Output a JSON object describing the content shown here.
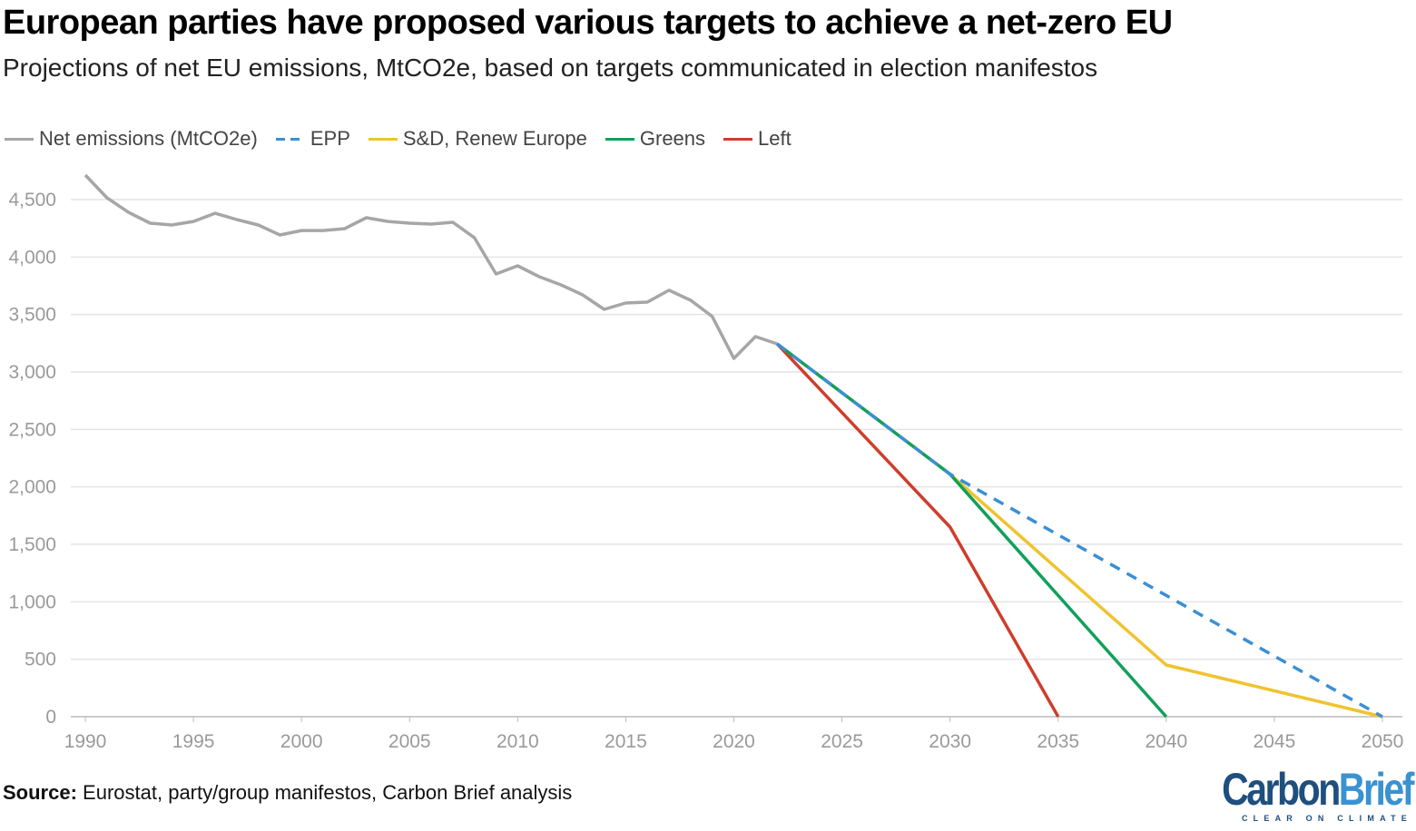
{
  "chart_data": {
    "type": "line",
    "title": "European parties have proposed various targets to achieve a net-zero EU",
    "subtitle": "Projections of net EU emissions, MtCO2e, based on targets communicated in election manifestos",
    "xlabel": "",
    "ylabel": "",
    "xlim": [
      1990,
      2050
    ],
    "ylim": [
      0,
      4500
    ],
    "x_ticks": [
      "1990",
      "1995",
      "2000",
      "2005",
      "2010",
      "2015",
      "2020",
      "2025",
      "2030",
      "2035",
      "2040",
      "2045",
      "2050"
    ],
    "y_ticks": [
      "0",
      "500",
      "1,000",
      "1,500",
      "2,000",
      "2,500",
      "3,000",
      "3,500",
      "4,000",
      "4,500"
    ],
    "grid": true,
    "legend_position": "top-left",
    "series": [
      {
        "name": "Net emissions (MtCO2e)",
        "color": "#a6a6a6",
        "dashed": false,
        "x": [
          1990,
          1991,
          1992,
          1993,
          1994,
          1995,
          1996,
          1997,
          1998,
          1999,
          2000,
          2001,
          2002,
          2003,
          2004,
          2005,
          2006,
          2007,
          2008,
          2009,
          2010,
          2011,
          2012,
          2013,
          2014,
          2015,
          2016,
          2017,
          2018,
          2019,
          2020,
          2021,
          2022
        ],
        "y": [
          4713,
          4516,
          4389,
          4295,
          4279,
          4310,
          4381,
          4326,
          4279,
          4192,
          4231,
          4231,
          4247,
          4342,
          4310,
          4295,
          4287,
          4303,
          4168,
          3853,
          3924,
          3829,
          3758,
          3671,
          3545,
          3600,
          3608,
          3711,
          3624,
          3482,
          3118,
          3308,
          3245
        ]
      },
      {
        "name": "EPP",
        "color": "#3b8fd3",
        "dashed": true,
        "x": [
          2022,
          2030,
          2050
        ],
        "y": [
          3245,
          2110,
          0
        ]
      },
      {
        "name": "S&D, Renew Europe",
        "color": "#f0c32e",
        "dashed": false,
        "x": [
          2022,
          2030,
          2040,
          2050
        ],
        "y": [
          3245,
          2110,
          450,
          0
        ]
      },
      {
        "name": "Greens",
        "color": "#11a05a",
        "dashed": false,
        "x": [
          2022,
          2030,
          2040
        ],
        "y": [
          3245,
          2110,
          0
        ]
      },
      {
        "name": "Left",
        "color": "#cf3d2a",
        "dashed": false,
        "x": [
          2022,
          2030,
          2035
        ],
        "y": [
          3245,
          1650,
          0
        ]
      }
    ]
  },
  "source": {
    "label": "Source:",
    "text": "Eurostat, party/group manifestos, Carbon Brief analysis"
  },
  "logo": {
    "part1": "Carbon",
    "part2": "Brief",
    "tagline": "CLEAR ON CLIMATE"
  }
}
